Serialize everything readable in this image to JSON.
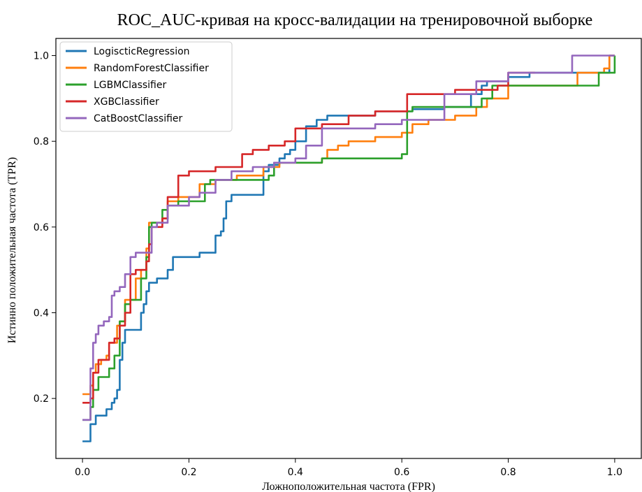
{
  "chart_data": {
    "type": "line",
    "title": "ROC_AUC-кривая на кросс-валидации на тренировочной выборке",
    "xlabel": "Ложноположительная частота (FPR)",
    "ylabel": "Истинно положительная частота (TPR)",
    "xlim": [
      -0.05,
      1.05
    ],
    "ylim": [
      0.06,
      1.04
    ],
    "xticks": [
      0.0,
      0.2,
      0.4,
      0.6,
      0.8,
      1.0
    ],
    "xtick_labels": [
      "0.0",
      "0.2",
      "0.4",
      "0.6",
      "0.8",
      "1.0"
    ],
    "yticks": [
      0.2,
      0.4,
      0.6,
      0.8,
      1.0
    ],
    "ytick_labels": [
      "0.2",
      "0.4",
      "0.6",
      "0.8",
      "1.0"
    ],
    "grid": false,
    "legend_position": "top-left",
    "series": [
      {
        "name": "LogiscticRegression",
        "color": "#1f77b4",
        "x": [
          0.0,
          0.01,
          0.015,
          0.025,
          0.035,
          0.045,
          0.055,
          0.06,
          0.065,
          0.07,
          0.075,
          0.08,
          0.1,
          0.11,
          0.115,
          0.12,
          0.125,
          0.13,
          0.14,
          0.16,
          0.17,
          0.2,
          0.22,
          0.25,
          0.26,
          0.265,
          0.27,
          0.28,
          0.3,
          0.33,
          0.34,
          0.35,
          0.37,
          0.38,
          0.39,
          0.4,
          0.42,
          0.44,
          0.46,
          0.48,
          0.5,
          0.53,
          0.55,
          0.6,
          0.62,
          0.68,
          0.73,
          0.75,
          0.76,
          0.8,
          0.84,
          0.98,
          0.99,
          1.0
        ],
        "y": [
          0.1,
          0.1,
          0.14,
          0.16,
          0.16,
          0.175,
          0.19,
          0.2,
          0.22,
          0.29,
          0.33,
          0.36,
          0.36,
          0.4,
          0.42,
          0.45,
          0.47,
          0.47,
          0.48,
          0.5,
          0.53,
          0.53,
          0.54,
          0.58,
          0.59,
          0.62,
          0.66,
          0.675,
          0.675,
          0.675,
          0.73,
          0.745,
          0.76,
          0.77,
          0.78,
          0.8,
          0.835,
          0.85,
          0.86,
          0.86,
          0.86,
          0.86,
          0.87,
          0.87,
          0.875,
          0.88,
          0.91,
          0.93,
          0.94,
          0.95,
          0.96,
          0.96,
          1.0,
          1.0
        ]
      },
      {
        "name": "RandomForestClassifier",
        "color": "#ff7f0e",
        "x": [
          0.0,
          0.01,
          0.015,
          0.02,
          0.025,
          0.035,
          0.045,
          0.05,
          0.065,
          0.07,
          0.08,
          0.1,
          0.11,
          0.12,
          0.125,
          0.13,
          0.15,
          0.16,
          0.18,
          0.22,
          0.25,
          0.29,
          0.34,
          0.37,
          0.4,
          0.45,
          0.46,
          0.48,
          0.5,
          0.55,
          0.6,
          0.62,
          0.65,
          0.7,
          0.74,
          0.76,
          0.8,
          0.92,
          0.93,
          0.98,
          0.99,
          1.0
        ],
        "y": [
          0.21,
          0.21,
          0.23,
          0.26,
          0.28,
          0.29,
          0.3,
          0.33,
          0.37,
          0.38,
          0.43,
          0.48,
          0.5,
          0.55,
          0.61,
          0.61,
          0.62,
          0.66,
          0.67,
          0.7,
          0.71,
          0.72,
          0.74,
          0.75,
          0.75,
          0.76,
          0.78,
          0.79,
          0.8,
          0.81,
          0.82,
          0.84,
          0.85,
          0.86,
          0.88,
          0.9,
          0.93,
          0.93,
          0.96,
          0.97,
          1.0,
          1.0
        ]
      },
      {
        "name": "LGBMClassifier",
        "color": "#2ca02c",
        "x": [
          0.0,
          0.01,
          0.015,
          0.02,
          0.03,
          0.05,
          0.06,
          0.07,
          0.08,
          0.09,
          0.11,
          0.12,
          0.125,
          0.13,
          0.15,
          0.16,
          0.18,
          0.2,
          0.23,
          0.24,
          0.28,
          0.35,
          0.36,
          0.4,
          0.45,
          0.55,
          0.6,
          0.61,
          0.62,
          0.66,
          0.7,
          0.75,
          0.77,
          0.85,
          0.9,
          0.96,
          0.97,
          1.0
        ],
        "y": [
          0.15,
          0.15,
          0.18,
          0.22,
          0.25,
          0.27,
          0.3,
          0.38,
          0.42,
          0.43,
          0.48,
          0.53,
          0.6,
          0.61,
          0.64,
          0.65,
          0.66,
          0.66,
          0.7,
          0.71,
          0.71,
          0.72,
          0.75,
          0.75,
          0.76,
          0.76,
          0.77,
          0.87,
          0.88,
          0.88,
          0.88,
          0.9,
          0.93,
          0.93,
          0.93,
          0.93,
          0.96,
          1.0
        ]
      },
      {
        "name": "XGBClassifier",
        "color": "#d62728",
        "x": [
          0.0,
          0.01,
          0.015,
          0.02,
          0.03,
          0.05,
          0.06,
          0.07,
          0.08,
          0.09,
          0.1,
          0.12,
          0.125,
          0.13,
          0.15,
          0.16,
          0.18,
          0.2,
          0.25,
          0.3,
          0.32,
          0.34,
          0.35,
          0.38,
          0.4,
          0.45,
          0.5,
          0.55,
          0.6,
          0.61,
          0.7,
          0.75,
          0.78,
          0.8,
          0.85
        ],
        "y": [
          0.19,
          0.19,
          0.2,
          0.26,
          0.29,
          0.33,
          0.34,
          0.37,
          0.4,
          0.49,
          0.5,
          0.52,
          0.56,
          0.6,
          0.62,
          0.67,
          0.72,
          0.73,
          0.74,
          0.77,
          0.78,
          0.78,
          0.79,
          0.8,
          0.83,
          0.84,
          0.86,
          0.87,
          0.87,
          0.91,
          0.92,
          0.92,
          0.93,
          0.96,
          0.96
        ]
      },
      {
        "name": "CatBoostClassifier",
        "color": "#9467bd",
        "x": [
          0.0,
          0.01,
          0.015,
          0.02,
          0.025,
          0.03,
          0.04,
          0.05,
          0.055,
          0.06,
          0.07,
          0.08,
          0.09,
          0.1,
          0.12,
          0.13,
          0.14,
          0.16,
          0.2,
          0.22,
          0.25,
          0.28,
          0.32,
          0.36,
          0.4,
          0.42,
          0.45,
          0.5,
          0.55,
          0.6,
          0.66,
          0.68,
          0.74,
          0.8,
          0.83,
          0.85,
          0.9,
          0.92,
          0.95,
          1.0
        ],
        "y": [
          0.15,
          0.15,
          0.27,
          0.33,
          0.35,
          0.37,
          0.38,
          0.39,
          0.44,
          0.45,
          0.46,
          0.49,
          0.53,
          0.54,
          0.54,
          0.6,
          0.61,
          0.65,
          0.67,
          0.68,
          0.71,
          0.73,
          0.74,
          0.75,
          0.76,
          0.79,
          0.83,
          0.83,
          0.84,
          0.85,
          0.85,
          0.91,
          0.94,
          0.96,
          0.96,
          0.96,
          0.96,
          1.0,
          1.0,
          1.0
        ]
      }
    ]
  }
}
